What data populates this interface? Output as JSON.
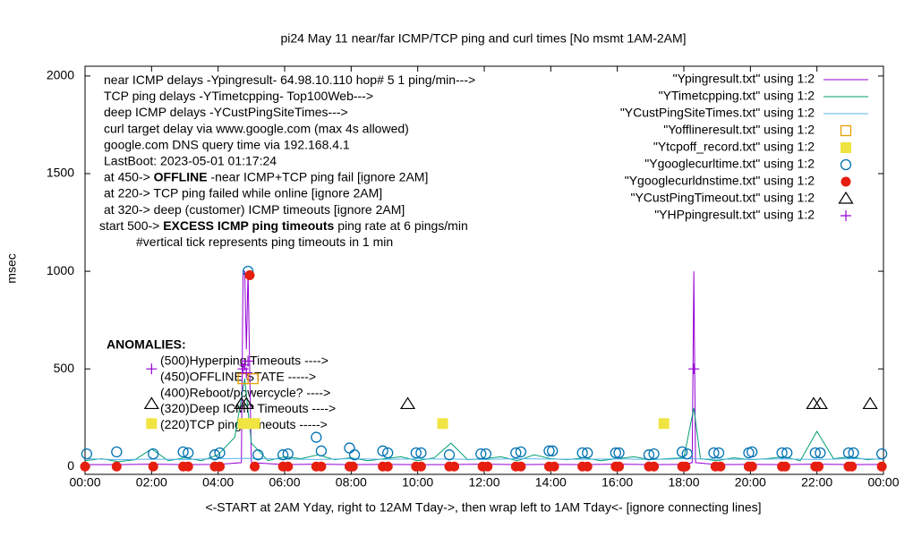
{
  "chart_data": {
    "type": "line",
    "title": "pi24 May 11  near/far ICMP/TCP ping and curl times [No msmt 1AM-2AM]",
    "x_label": "<-START at 2AM Yday, right to 12AM Tday->, then wrap left to 1AM Tday<- [ignore connecting lines]",
    "y_label": "msec",
    "xlim": [
      0,
      24
    ],
    "ylim": [
      -40,
      2050
    ],
    "xticks": [
      {
        "value": 0,
        "label": "00:00"
      },
      {
        "value": 2,
        "label": "02:00"
      },
      {
        "value": 4,
        "label": "04:00"
      },
      {
        "value": 6,
        "label": "06:00"
      },
      {
        "value": 8,
        "label": "08:00"
      },
      {
        "value": 10,
        "label": "10:00"
      },
      {
        "value": 12,
        "label": "12:00"
      },
      {
        "value": 14,
        "label": "14:00"
      },
      {
        "value": 16,
        "label": "16:00"
      },
      {
        "value": 18,
        "label": "18:00"
      },
      {
        "value": 20,
        "label": "20:00"
      },
      {
        "value": 22,
        "label": "22:00"
      },
      {
        "value": 24,
        "label": "00:00"
      }
    ],
    "yticks": [
      0,
      500,
      1000,
      1500,
      2000
    ],
    "annotations": [
      [
        {
          "text": "near ICMP delays -Ypingresult- 64.98.10.110 hop# 5 1 ping/min--->"
        }
      ],
      [
        {
          "text": "TCP ping delays -YTimetcpping- Top100Web--->"
        }
      ],
      [
        {
          "text": "deep ICMP delays -YCustPingSiteTimes--->"
        }
      ],
      [
        {
          "text": "curl target delay via www.google.com (max 4s allowed)"
        }
      ],
      [
        {
          "text": "google.com DNS query time via 192.168.4.1"
        }
      ],
      [
        {
          "text": "LastBoot: 2023-05-01 01:17:24"
        }
      ],
      [
        {
          "text": "at 450-> "
        },
        {
          "text": "OFFLINE",
          "bold": true
        },
        {
          "text": " -near ICMP+TCP ping fail [ignore 2AM]"
        }
      ],
      [
        {
          "text": "at 220-> TCP ping failed while online [ignore 2AM]"
        }
      ],
      [
        {
          "text": "at 320-> deep (customer) ICMP timeouts [ignore 2AM]"
        }
      ],
      [
        {
          "text": "start 500-> "
        },
        {
          "text": "EXCESS ICMP ping timeouts",
          "bold": true
        },
        {
          "text": " ping rate at 6 pings/min"
        }
      ],
      [
        {
          "text": "#vertical tick represents ping timeouts in 1 min"
        }
      ]
    ],
    "anomalies_title": "ANOMALIES:",
    "anomalies": [
      "(500)Hyperping Timeouts ---->",
      "(450)OFFLINE STATE ----->",
      "(400)Reboot/powercycle? ---->",
      "(320)Deep ICMP Timeouts ---->",
      "(220)TCP ping Timeouts ----->"
    ],
    "series": [
      {
        "name": "\"Ypingresult.txt\" using 1:2",
        "color": "#9400d3",
        "style": "line",
        "x": [
          0,
          1,
          2,
          3,
          4,
          4.7,
          4.75,
          4.8,
          4.85,
          4.9,
          4.95,
          5.0,
          6,
          7,
          8,
          9,
          10,
          11,
          12,
          13,
          14,
          15,
          16,
          17,
          18,
          18.25,
          18.3,
          18.35,
          19,
          20,
          21,
          22,
          23,
          24
        ],
        "values": [
          10,
          10,
          12,
          10,
          11,
          20,
          1000,
          1000,
          600,
          1000,
          500,
          20,
          10,
          12,
          10,
          11,
          10,
          10,
          12,
          10,
          11,
          10,
          12,
          10,
          11,
          20,
          1000,
          20,
          10,
          11,
          10,
          12,
          10,
          11
        ]
      },
      {
        "name": "\"YTimetcpping.txt\" using 1:2",
        "color": "#009e73",
        "style": "line",
        "x": [
          0,
          0.5,
          1,
          1.5,
          2,
          2.5,
          3,
          3.5,
          4,
          4.5,
          4.8,
          5,
          5.5,
          6,
          6.5,
          7,
          7.5,
          8,
          8.5,
          9,
          9.5,
          10,
          10.5,
          11,
          11.5,
          12,
          12.5,
          13,
          13.5,
          14,
          14.5,
          15,
          15.5,
          16,
          16.5,
          17,
          17.5,
          18,
          18.3,
          18.5,
          19,
          19.5,
          20,
          20.5,
          21,
          21.5,
          22,
          22.5,
          23,
          23.5,
          24
        ],
        "values": [
          30,
          40,
          25,
          35,
          90,
          30,
          45,
          30,
          60,
          150,
          450,
          120,
          30,
          50,
          40,
          60,
          35,
          45,
          30,
          40,
          50,
          30,
          45,
          120,
          35,
          40,
          50,
          30,
          60,
          40,
          35,
          45,
          30,
          40,
          50,
          35,
          40,
          45,
          300,
          40,
          30,
          45,
          35,
          40,
          50,
          30,
          180,
          40,
          50,
          35,
          40
        ]
      },
      {
        "name": "\"YCustPingSiteTimes.txt\" using 1:2",
        "color": "#56b4e9",
        "style": "line",
        "x": [
          0,
          1,
          2,
          3,
          4,
          5,
          6,
          7,
          8,
          9,
          10,
          11,
          12,
          13,
          14,
          15,
          16,
          17,
          18,
          19,
          20,
          21,
          22,
          23,
          24
        ],
        "values": [
          40,
          35,
          38,
          36,
          40,
          42,
          38,
          36,
          40,
          37,
          39,
          38,
          36,
          40,
          38,
          37,
          39,
          36,
          40,
          38,
          37,
          39,
          36,
          40,
          38
        ]
      },
      {
        "name": "\"Yofflineresult.txt\" using 1:2",
        "color": "#e69f00",
        "style": "square-open",
        "x": [
          4.75,
          5.05
        ],
        "values": [
          450,
          450
        ]
      },
      {
        "name": "\"Ytcpoff_record.txt\" using 1:2",
        "color": "#f0e442",
        "style": "square",
        "x": [
          2.0,
          4.75,
          4.95,
          5.1,
          10.75,
          17.4
        ],
        "values": [
          220,
          220,
          220,
          220,
          220,
          220
        ]
      },
      {
        "name": "\"Ygooglecurltime.txt\" using 1:2",
        "color": "#0072b2",
        "style": "circle-open",
        "x": [
          0.05,
          0.95,
          2.05,
          2.95,
          3.1,
          3.9,
          4.05,
          4.9,
          5.2,
          5.95,
          6.1,
          6.95,
          7.1,
          7.95,
          8.1,
          8.95,
          9.1,
          9.95,
          10.1,
          10.95,
          11.9,
          12.05,
          12.95,
          13.1,
          13.95,
          14.05,
          14.95,
          15.1,
          15.95,
          16.05,
          16.95,
          17.1,
          17.95,
          18.1,
          18.9,
          19.05,
          19.95,
          20.05,
          20.95,
          21.1,
          21.95,
          22.1,
          22.95,
          23.1,
          23.95
        ],
        "values": [
          65,
          75,
          65,
          75,
          70,
          60,
          70,
          1000,
          60,
          60,
          65,
          150,
          80,
          95,
          60,
          80,
          70,
          70,
          70,
          60,
          65,
          65,
          70,
          75,
          80,
          80,
          70,
          70,
          70,
          70,
          60,
          65,
          75,
          65,
          70,
          70,
          70,
          75,
          70,
          70,
          70,
          70,
          70,
          70,
          65
        ]
      },
      {
        "name": "\"Ygooglecurldnstime.txt\" using 1:2",
        "color": "#e51e10",
        "style": "circle",
        "x": [
          0,
          0.95,
          2.05,
          2.95,
          3.1,
          3.9,
          4.05,
          4.95,
          5.1,
          5.95,
          6.1,
          6.95,
          7.1,
          7.95,
          8.05,
          8.95,
          9.1,
          9.95,
          10.1,
          10.95,
          11.1,
          11.95,
          12.1,
          12.95,
          13.1,
          13.95,
          14.1,
          14.95,
          15.1,
          15.95,
          16.05,
          16.95,
          17.1,
          17.95,
          18.05,
          18.95,
          19.1,
          19.95,
          20.05,
          20.95,
          21.05,
          21.95,
          22.05,
          22.95,
          23.05,
          23.95
        ],
        "values": [
          0,
          0,
          0,
          0,
          0,
          0,
          0,
          980,
          0,
          0,
          0,
          0,
          0,
          0,
          0,
          0,
          0,
          0,
          0,
          0,
          0,
          0,
          0,
          0,
          0,
          0,
          0,
          0,
          0,
          0,
          0,
          0,
          0,
          0,
          0,
          0,
          0,
          0,
          0,
          0,
          0,
          0,
          0,
          0,
          0,
          0
        ]
      },
      {
        "name": "\"YCustPingTimeout.txt\" using 1:2",
        "color": "#000000",
        "style": "triangle-open",
        "x": [
          2.0,
          4.7,
          4.85,
          9.7,
          21.9,
          22.1,
          23.6
        ],
        "values": [
          320,
          320,
          320,
          320,
          320,
          320,
          320
        ]
      },
      {
        "name": "\"YHPpingresult.txt\" using 1:2",
        "color": "#9400d3",
        "style": "plus",
        "x": [
          2.0,
          4.75,
          4.8,
          4.85,
          4.9,
          18.3
        ],
        "values": [
          500,
          500,
          520,
          480,
          540,
          500
        ]
      }
    ]
  }
}
